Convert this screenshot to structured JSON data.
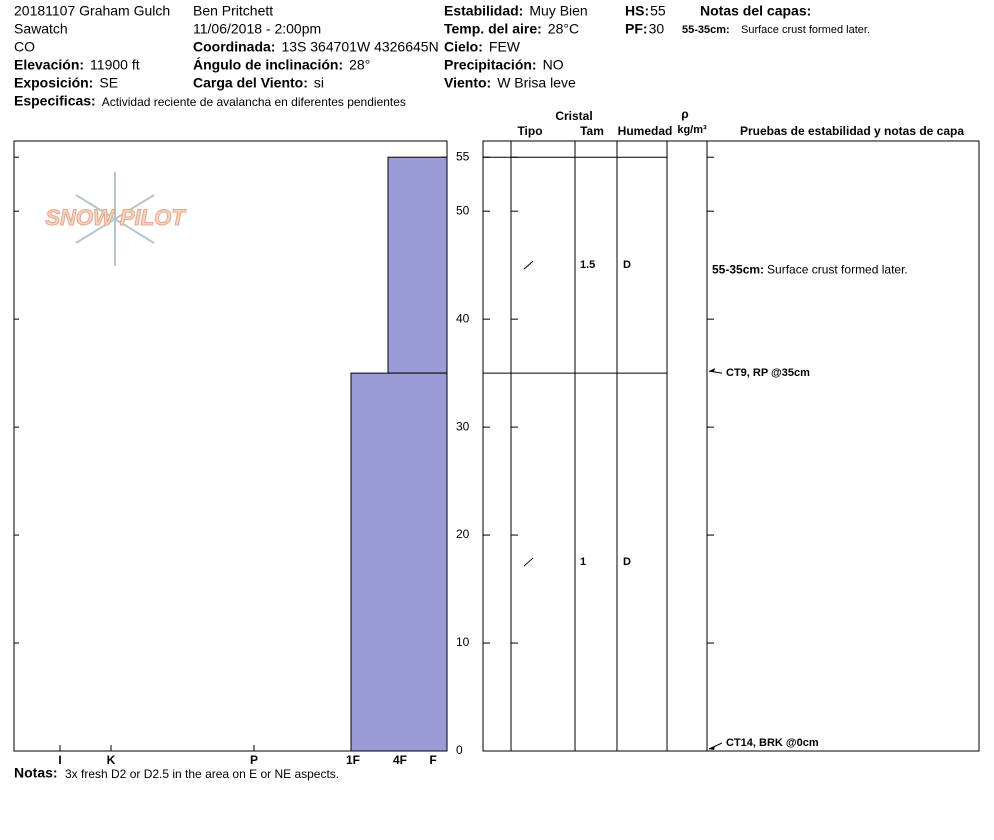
{
  "header": {
    "columns": [
      [
        {
          "value": "20181107 Graham Gulch"
        },
        {
          "value": "Sawatch"
        },
        {
          "value": "CO"
        },
        {
          "label": "Elevación:",
          "value": "11900 ft"
        },
        {
          "label": "Exposición:",
          "value": "SE"
        },
        {
          "label": "Especificas:",
          "value": "Actividad reciente de avalancha en diferentes pendientes"
        }
      ],
      [
        {
          "value": "Ben Pritchett"
        },
        {
          "value": "11/06/2018 - 2:00pm"
        },
        {
          "label": "Coordinada:",
          "value": "13S 364701W 4326645N"
        },
        {
          "label": "Ángulo de inclinación:",
          "value": "28°"
        },
        {
          "label": "Carga del Viento:",
          "value": "si"
        }
      ],
      [
        {
          "label": "Estabilidad:",
          "value": "Muy Bien"
        },
        {
          "label": "Temp. del aire:",
          "value": "28°C"
        },
        {
          "label": "Cielo:",
          "value": "FEW"
        },
        {
          "label": "Precipitación:",
          "value": "NO"
        },
        {
          "label": "Viento:",
          "value": "W Brisa leve"
        }
      ],
      [
        {
          "label": "HS:",
          "value": 55
        },
        {
          "label": "PF:",
          "value": 30
        }
      ]
    ],
    "layer_notes_title": "Notas del capas:"
  },
  "logo": "SNOW PILOT",
  "chart_data": {
    "type": "snow-profile",
    "ylim": [
      0,
      56.5
    ],
    "yticks": [
      0,
      10,
      20,
      30,
      40,
      50,
      55
    ],
    "xlim": [
      433,
      0
    ],
    "xticks": [
      {
        "value": 387,
        "label": "I"
      },
      {
        "value": 336,
        "label": "K"
      },
      {
        "value": 193,
        "label": "P"
      },
      {
        "value": 94,
        "label": "1F"
      },
      {
        "value": 47,
        "label": "4F"
      },
      {
        "value": 14,
        "label": "F"
      }
    ],
    "color": "#9b9bd8",
    "columns": {
      "crystal": "Cristal",
      "type": "Tipo",
      "size": "Tam",
      "moisture": "Humedad",
      "density": "ρ",
      "density_unit": "kg/m³",
      "tests": "Pruebas de estabilidad y notas de capa"
    },
    "layers": [
      {
        "top": 55,
        "bottom": 35,
        "hardness": 59,
        "size": 1.5,
        "moisture": "D",
        "note_label": "55-35cm:",
        "note": "Surface crust formed later."
      },
      {
        "top": 35,
        "bottom": 0,
        "hardness": 96,
        "size": 1,
        "moisture": "D"
      }
    ],
    "tests": [
      {
        "depth": 35,
        "label": "CT9, RP @35cm"
      },
      {
        "depth": 0,
        "label": "CT14, BRK @0cm"
      }
    ]
  },
  "footer": {
    "label": "Notas:",
    "text": "3x fresh D2 or D2.5 in the area on E or NE aspects."
  }
}
